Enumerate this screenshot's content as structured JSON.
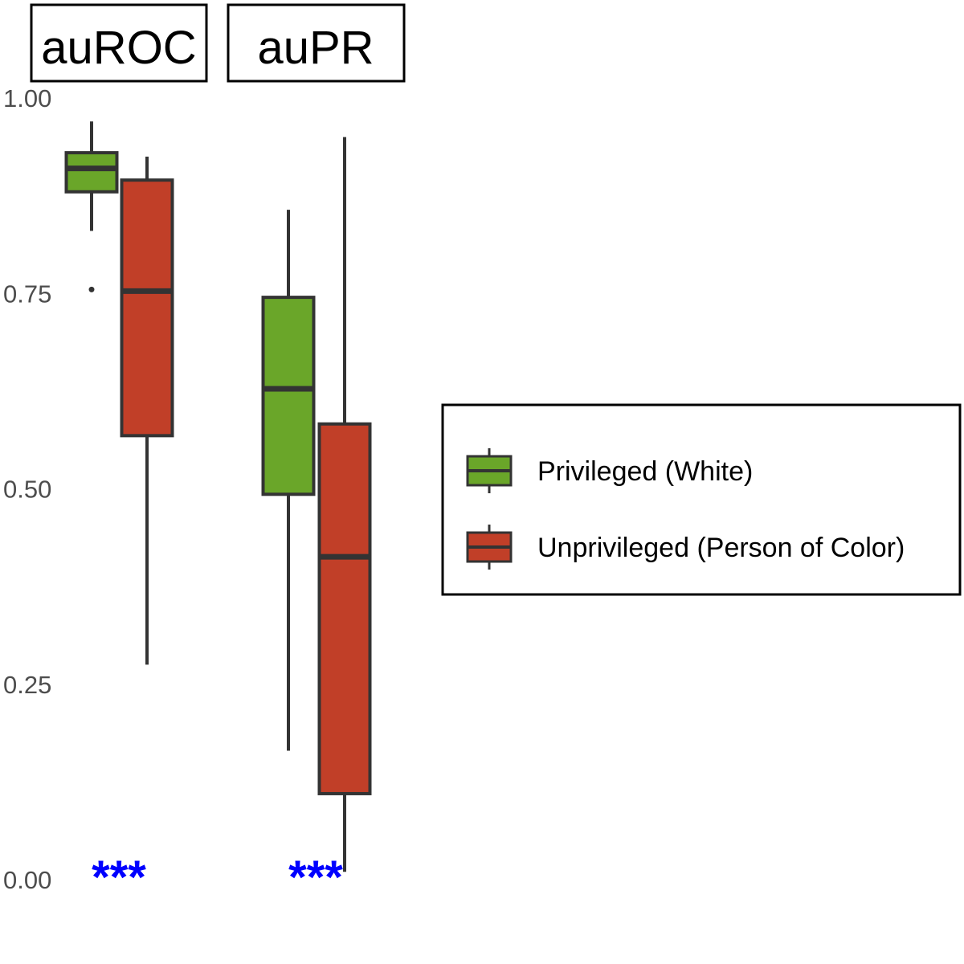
{
  "chart_data": {
    "type": "box",
    "facets": [
      "auROC",
      "auPR"
    ],
    "groups": [
      "Privileged (White)",
      "Unprivileged (Person of Color)"
    ],
    "colors": {
      "Privileged (White)": "#6aa629",
      "Unprivileged (Person of Color)": "#c13f28",
      "outline": "#333333",
      "significance": "#0000ff"
    },
    "ylim": [
      0,
      1
    ],
    "y_ticks": [
      "0.00",
      "0.25",
      "0.50",
      "0.75",
      "1.00"
    ],
    "y_tick_values": [
      0,
      0.25,
      0.5,
      0.75,
      1.0
    ],
    "boxes": [
      {
        "facet": "auROC",
        "group": "Privileged (White)",
        "min": 0.83,
        "q1": 0.88,
        "median": 0.91,
        "q3": 0.93,
        "max": 0.97,
        "outliers": [
          0.755
        ]
      },
      {
        "facet": "auROC",
        "group": "Unprivileged (Person of Color)",
        "min": 0.275,
        "q1": 0.568,
        "median": 0.753,
        "q3": 0.895,
        "max": 0.925,
        "outliers": []
      },
      {
        "facet": "auPR",
        "group": "Privileged (White)",
        "min": 0.165,
        "q1": 0.493,
        "median": 0.628,
        "q3": 0.745,
        "max": 0.857,
        "outliers": []
      },
      {
        "facet": "auPR",
        "group": "Unprivileged (Person of Color)",
        "min": 0.01,
        "q1": 0.11,
        "median": 0.413,
        "q3": 0.583,
        "max": 0.95,
        "outliers": []
      }
    ],
    "annotations": [
      {
        "facet": "auROC",
        "text": "***"
      },
      {
        "facet": "auPR",
        "text": "***"
      }
    ],
    "legend": {
      "placement": "right",
      "entries": [
        "Privileged (White)",
        "Unprivileged (Person of Color)"
      ]
    },
    "grid": false
  }
}
